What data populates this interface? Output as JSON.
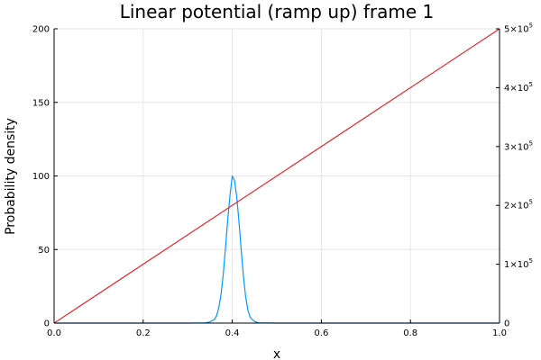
{
  "chart_data": {
    "type": "line",
    "title": "Linear potential (ramp up) frame 1",
    "xlabel": "x",
    "ylabel": "Probability density",
    "y2label": "",
    "xlim": [
      0,
      1
    ],
    "ylim": [
      0,
      200
    ],
    "y2lim": [
      0,
      500000
    ],
    "grid": true,
    "legend": "none",
    "x_ticks": [
      "0.0",
      "0.2",
      "0.4",
      "0.6",
      "0.8",
      "1.0"
    ],
    "y_ticks": [
      "0",
      "50",
      "100",
      "150",
      "200"
    ],
    "y2_ticks": [
      {
        "value": 0,
        "mantissa": "0",
        "exponent": ""
      },
      {
        "value": 100000,
        "mantissa": "1×10",
        "exponent": "5"
      },
      {
        "value": 200000,
        "mantissa": "2×10",
        "exponent": "5"
      },
      {
        "value": 300000,
        "mantissa": "3×10",
        "exponent": "5"
      },
      {
        "value": 400000,
        "mantissa": "4×10",
        "exponent": "5"
      },
      {
        "value": 500000,
        "mantissa": "5×10",
        "exponent": "5"
      }
    ],
    "series": [
      {
        "axis": "left",
        "color": "#009AFA",
        "x": [
          0.0,
          0.3,
          0.34,
          0.35,
          0.36,
          0.365,
          0.37,
          0.375,
          0.38,
          0.385,
          0.39,
          0.395,
          0.4,
          0.405,
          0.41,
          0.415,
          0.42,
          0.425,
          0.43,
          0.435,
          0.44,
          0.45,
          0.46,
          0.5,
          1.0
        ],
        "values": [
          0,
          0,
          0.2,
          0.8,
          2.5,
          5,
          11,
          20,
          34,
          52,
          71,
          87,
          100,
          97,
          86,
          69,
          50,
          32,
          18,
          9,
          4,
          1,
          0.2,
          0,
          0
        ]
      },
      {
        "axis": "right",
        "color": "#E8262B",
        "x": [
          0.0,
          1.0
        ],
        "values": [
          0,
          500000
        ]
      }
    ]
  }
}
